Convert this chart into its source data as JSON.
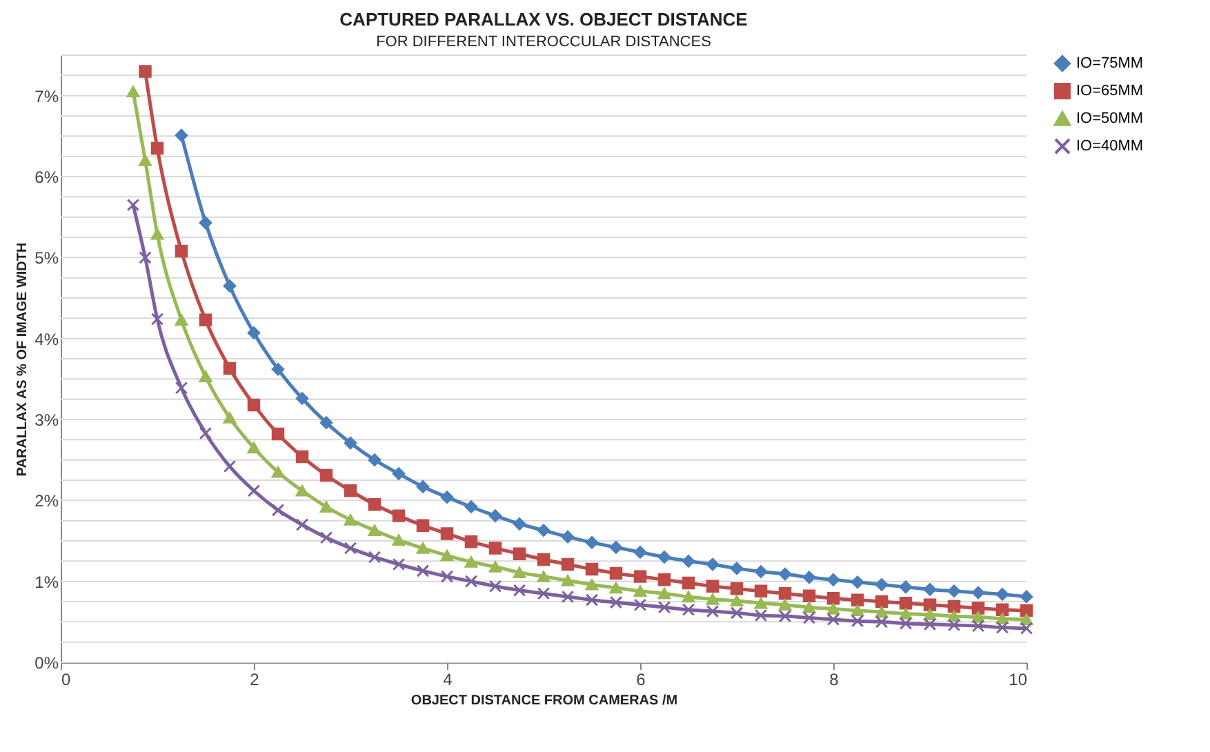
{
  "chart_data": {
    "type": "line",
    "title": "CAPTURED PARALLAX VS. OBJECT DISTANCE",
    "subtitle": "FOR DIFFERENT INTEROCCULAR DISTANCES",
    "xlabel": "OBJECT DISTANCE FROM CAMERAS /M",
    "ylabel": "PARALLAX AS % OF IMAGE WIDTH",
    "x": [
      0.75,
      0.875,
      1,
      1.25,
      1.5,
      1.75,
      2,
      2.25,
      2.5,
      2.75,
      3,
      3.25,
      3.5,
      3.75,
      4,
      4.25,
      4.5,
      4.75,
      5,
      5.25,
      5.5,
      5.75,
      6,
      6.25,
      6.5,
      6.75,
      7,
      7.25,
      7.5,
      7.75,
      8,
      8.25,
      8.5,
      8.75,
      9,
      9.25,
      9.5,
      9.75,
      10
    ],
    "series": [
      {
        "name": "IO=75MM",
        "color": "#4a7ebb",
        "marker": "diamond",
        "values": [
          null,
          null,
          null,
          6.51,
          5.43,
          4.65,
          4.07,
          3.62,
          3.26,
          2.96,
          2.71,
          2.5,
          2.33,
          2.17,
          2.04,
          1.92,
          1.81,
          1.71,
          1.63,
          1.55,
          1.48,
          1.42,
          1.36,
          1.3,
          1.25,
          1.21,
          1.16,
          1.12,
          1.09,
          1.05,
          1.02,
          0.99,
          0.96,
          0.93,
          0.9,
          0.88,
          0.86,
          0.84,
          0.81
        ]
      },
      {
        "name": "IO=65MM",
        "color": "#be4b48",
        "marker": "square",
        "values": [
          null,
          7.3,
          6.35,
          5.08,
          4.23,
          3.63,
          3.18,
          2.82,
          2.54,
          2.31,
          2.12,
          1.95,
          1.81,
          1.69,
          1.59,
          1.49,
          1.41,
          1.34,
          1.27,
          1.21,
          1.15,
          1.1,
          1.06,
          1.02,
          0.98,
          0.94,
          0.91,
          0.88,
          0.85,
          0.82,
          0.79,
          0.77,
          0.75,
          0.73,
          0.71,
          0.69,
          0.67,
          0.65,
          0.64
        ]
      },
      {
        "name": "IO=50MM",
        "color": "#98b954",
        "marker": "triangle",
        "values": [
          7.05,
          6.2,
          5.29,
          4.23,
          3.53,
          3.02,
          2.65,
          2.35,
          2.12,
          1.92,
          1.76,
          1.63,
          1.51,
          1.41,
          1.32,
          1.24,
          1.18,
          1.11,
          1.06,
          1.01,
          0.96,
          0.92,
          0.88,
          0.85,
          0.81,
          0.78,
          0.76,
          0.73,
          0.71,
          0.68,
          0.66,
          0.64,
          0.62,
          0.6,
          0.59,
          0.57,
          0.56,
          0.54,
          0.53
        ]
      },
      {
        "name": "IO=40MM",
        "color": "#7d60a0",
        "marker": "cross",
        "values": [
          5.65,
          5.0,
          4.24,
          3.39,
          2.83,
          2.42,
          2.12,
          1.88,
          1.7,
          1.54,
          1.41,
          1.3,
          1.21,
          1.13,
          1.06,
          1.0,
          0.94,
          0.89,
          0.85,
          0.81,
          0.77,
          0.74,
          0.71,
          0.68,
          0.65,
          0.63,
          0.61,
          0.58,
          0.57,
          0.55,
          0.53,
          0.51,
          0.5,
          0.48,
          0.47,
          0.46,
          0.45,
          0.43,
          0.42
        ]
      }
    ],
    "xlim": [
      0,
      10
    ],
    "xticks": [
      0,
      2,
      4,
      6,
      8,
      10
    ],
    "ylim": [
      0,
      7.5
    ],
    "yticks": [
      {
        "value": 0,
        "label": "0%"
      },
      {
        "value": 0.25,
        "label": null
      },
      {
        "value": 0.5,
        "label": null
      },
      {
        "value": 0.75,
        "label": null
      },
      {
        "value": 1,
        "label": "1%"
      },
      {
        "value": 1.25,
        "label": null
      },
      {
        "value": 1.5,
        "label": null
      },
      {
        "value": 1.75,
        "label": null
      },
      {
        "value": 2,
        "label": "2%"
      },
      {
        "value": 2.25,
        "label": null
      },
      {
        "value": 2.5,
        "label": null
      },
      {
        "value": 2.75,
        "label": null
      },
      {
        "value": 3,
        "label": "3%"
      },
      {
        "value": 3.25,
        "label": null
      },
      {
        "value": 3.5,
        "label": null
      },
      {
        "value": 3.75,
        "label": null
      },
      {
        "value": 4,
        "label": "4%"
      },
      {
        "value": 4.25,
        "label": null
      },
      {
        "value": 4.5,
        "label": null
      },
      {
        "value": 4.75,
        "label": null
      },
      {
        "value": 5,
        "label": "5%"
      },
      {
        "value": 5.25,
        "label": null
      },
      {
        "value": 5.5,
        "label": null
      },
      {
        "value": 5.75,
        "label": null
      },
      {
        "value": 6,
        "label": "6%"
      },
      {
        "value": 6.25,
        "label": null
      },
      {
        "value": 6.5,
        "label": null
      },
      {
        "value": 6.75,
        "label": null
      },
      {
        "value": 7,
        "label": "7%"
      },
      {
        "value": 7.25,
        "label": null
      },
      {
        "value": 7.5,
        "label": null
      }
    ],
    "grid": "y",
    "legend": "right",
    "line_style": "solid"
  }
}
